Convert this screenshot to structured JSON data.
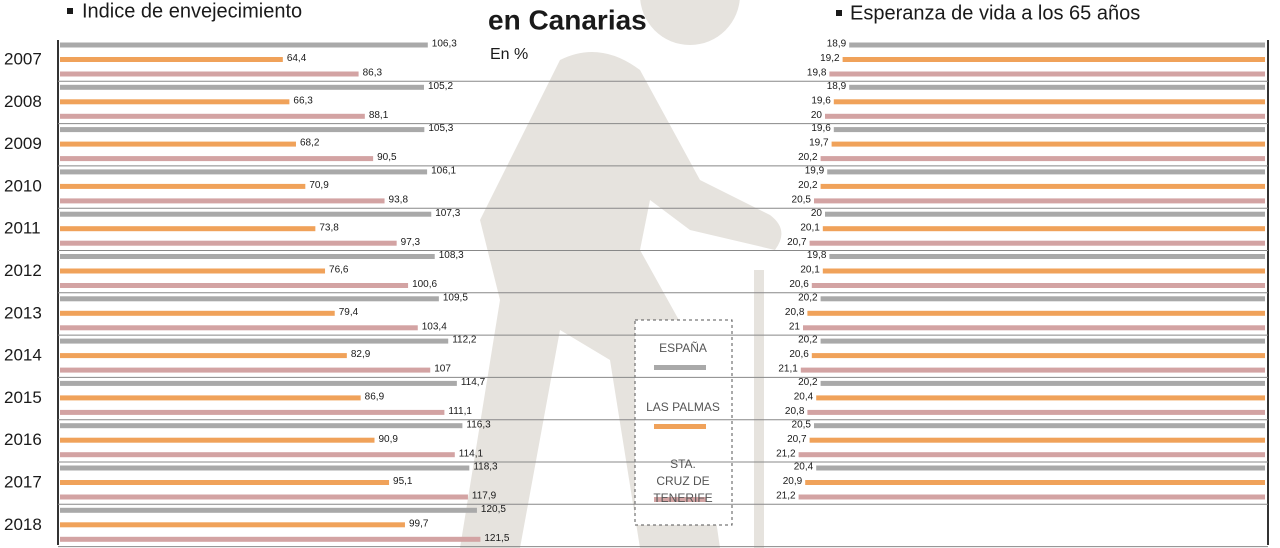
{
  "title": "en Canarias",
  "subtitle": "En %",
  "chart_data": [
    {
      "type": "bar",
      "orientation": "horizontal",
      "anchor": "left",
      "title": "Indice de envejecimiento",
      "categories": [
        "2007",
        "2008",
        "2009",
        "2010",
        "2011",
        "2012",
        "2013",
        "2014",
        "2015",
        "2016",
        "2017",
        "2018"
      ],
      "series": [
        {
          "name": "ESPAÑA",
          "color": "#a9a9a9",
          "values": [
            106.3,
            105.2,
            105.3,
            106.1,
            107.3,
            108.3,
            109.5,
            112.2,
            114.7,
            116.3,
            118.3,
            120.5
          ],
          "value_labels": [
            "106,3",
            "105,2",
            "105,3",
            "106,1",
            "107,3",
            "108,3",
            "109,5",
            "112,2",
            "114,7",
            "116,3",
            "118,3",
            "120,5"
          ]
        },
        {
          "name": "LAS PALMAS",
          "color": "#f0a25a",
          "values": [
            64.4,
            66.3,
            68.2,
            70.9,
            73.8,
            76.6,
            79.4,
            82.9,
            86.9,
            90.9,
            95.1,
            99.7
          ],
          "value_labels": [
            "64,4",
            "66,3",
            "68,2",
            "70,9",
            "73,8",
            "76,6",
            "79,4",
            "82,9",
            "86,9",
            "90,9",
            "95,1",
            "99,7"
          ]
        },
        {
          "name": "STA. CRUZ DE TENERIFE",
          "color": "#d3a3a3",
          "values": [
            86.3,
            88.1,
            90.5,
            93.8,
            97.3,
            100.6,
            103.4,
            107,
            111.1,
            114.1,
            117.9,
            121.5
          ],
          "value_labels": [
            "86,3",
            "88,1",
            "90,5",
            "93,8",
            "97,3",
            "100,6",
            "103,4",
            "107",
            "111,1",
            "114,1",
            "117,9",
            "121,5"
          ]
        }
      ]
    },
    {
      "type": "bar",
      "orientation": "horizontal",
      "anchor": "right",
      "title": "Esperanza de vida a los 65 años",
      "categories": [
        "2007",
        "2008",
        "2009",
        "2010",
        "2011",
        "2012",
        "2013",
        "2014",
        "2015",
        "2016",
        "2017",
        "2018"
      ],
      "series": [
        {
          "name": "ESPAÑA",
          "color": "#a9a9a9",
          "values": [
            18.9,
            18.9,
            19.6,
            19.9,
            20,
            19.8,
            20.2,
            20.2,
            20.2,
            20.5,
            20.4,
            null
          ],
          "value_labels": [
            "18,9",
            "18,9",
            "19,6",
            "19,9",
            "20",
            "19,8",
            "20,2",
            "20,2",
            "20,2",
            "20,5",
            "20,4",
            null
          ]
        },
        {
          "name": "LAS PALMAS",
          "color": "#f0a25a",
          "values": [
            19.2,
            19.6,
            19.7,
            20.2,
            20.1,
            20.1,
            20.8,
            20.6,
            20.4,
            20.7,
            20.9,
            null
          ],
          "value_labels": [
            "19,2",
            "19,6",
            "19,7",
            "20,2",
            "20,1",
            "20,1",
            "20,8",
            "20,6",
            "20,4",
            "20,7",
            "20,9",
            null
          ]
        },
        {
          "name": "STA. CRUZ DE TENERIFE",
          "color": "#d3a3a3",
          "values": [
            19.8,
            20,
            20.2,
            20.5,
            20.7,
            20.6,
            21,
            21.1,
            20.8,
            21.2,
            21.2,
            null
          ],
          "value_labels": [
            "19,8",
            "20",
            "20,2",
            "20,5",
            "20,7",
            "20,6",
            "21",
            "21,1",
            "20,8",
            "21,2",
            "21,2",
            null
          ]
        }
      ]
    }
  ]
}
